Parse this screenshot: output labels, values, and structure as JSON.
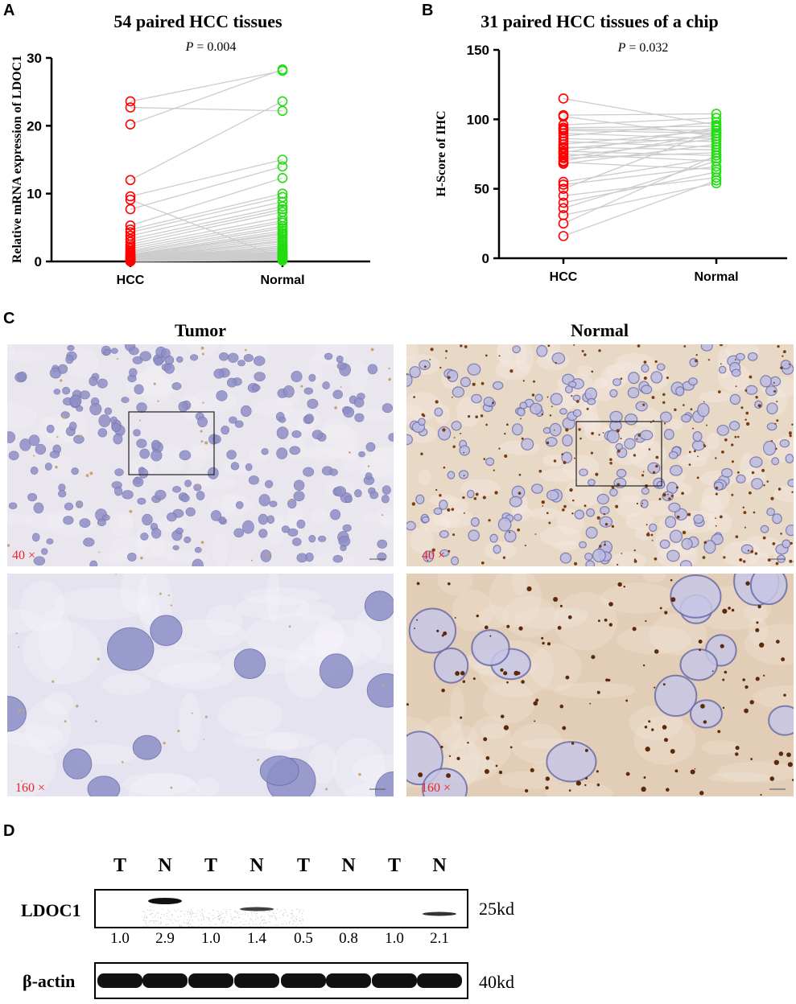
{
  "panels": {
    "a": "A",
    "b": "B",
    "c": "C",
    "d": "D"
  },
  "chart_data": [
    {
      "type": "scatter",
      "title": "54 paired HCC tissues",
      "annotation": "P = 0.004",
      "p_label": "P",
      "p_value": "= 0.004",
      "ylabel": "Relative mRNA expression of LDOC1",
      "categories": [
        "HCC",
        "Normal"
      ],
      "ylim": [
        0,
        30
      ],
      "yticks": [
        0,
        10,
        20,
        30
      ],
      "paired": true,
      "colors": {
        "HCC": "#ff0000",
        "Normal": "#22dd11",
        "lines": "#cccccc"
      },
      "hcc": [
        23.6,
        22.7,
        20.2,
        12.0,
        9.6,
        9.1,
        7.7,
        5.3,
        4.7,
        4.3,
        3.8,
        3.3,
        2.9,
        2.5,
        2.2,
        1.9,
        1.6,
        1.4,
        1.2,
        1.0,
        0.9,
        0.8,
        0.7,
        0.6,
        0.5,
        0.45,
        0.4,
        0.35,
        0.3,
        0.28,
        0.25,
        0.22,
        0.2,
        0.18,
        0.16,
        0.15,
        0.14,
        0.12,
        0.11,
        0.1,
        0.1,
        0.09,
        0.08,
        0.08,
        0.07,
        0.06,
        0.06,
        0.05,
        0.05,
        0.04,
        0.04,
        0.03,
        0.03,
        0.02
      ],
      "normal": [
        28.1,
        22.2,
        28.3,
        23.6,
        15.0,
        0.5,
        14.0,
        12.3,
        10.0,
        9.5,
        8.8,
        8.1,
        7.7,
        7.3,
        6.5,
        6.0,
        5.7,
        5.2,
        4.9,
        4.5,
        4.2,
        4.0,
        3.7,
        3.4,
        3.1,
        2.9,
        2.6,
        2.3,
        2.1,
        1.9,
        1.7,
        1.5,
        1.4,
        1.3,
        1.2,
        1.1,
        1.0,
        0.95,
        0.9,
        0.85,
        0.8,
        0.75,
        0.7,
        0.65,
        0.6,
        0.55,
        0.5,
        0.45,
        0.4,
        0.35,
        0.3,
        0.25,
        0.2,
        0.15
      ]
    },
    {
      "type": "scatter",
      "title": "31 paired HCC tissues of a chip",
      "annotation": "P = 0.032",
      "p_label": "P",
      "p_value": "= 0.032",
      "ylabel": "H-Score of IHC",
      "categories": [
        "HCC",
        "Normal"
      ],
      "ylim": [
        0,
        150
      ],
      "yticks": [
        0,
        50,
        100,
        150
      ],
      "paired": true,
      "colors": {
        "HCC": "#ff0000",
        "Normal": "#22dd11",
        "lines": "#cccccc"
      },
      "hcc": [
        115,
        103,
        102,
        96,
        94,
        93,
        92,
        90,
        88,
        86,
        84,
        82,
        80,
        79,
        77,
        76,
        75,
        73,
        72,
        70,
        69,
        68,
        55,
        53,
        50,
        45,
        40,
        36,
        31,
        25,
        16
      ],
      "normal": [
        96,
        104,
        88,
        101,
        95,
        92,
        90,
        86,
        98,
        84,
        80,
        92,
        78,
        88,
        74,
        94,
        70,
        86,
        76,
        90,
        64,
        82,
        72,
        66,
        92,
        58,
        62,
        70,
        54,
        74,
        56
      ]
    }
  ],
  "ihc": {
    "tumor_title": "Tumor",
    "normal_title": "Normal",
    "mag_40": "40 ×",
    "mag_160": "160 ×"
  },
  "western": {
    "lanes": [
      "T",
      "N",
      "T",
      "N",
      "T",
      "N",
      "T",
      "N"
    ],
    "ldoc1_label": "LDOC1",
    "actin_label": "β-actin",
    "ldoc1_size": "25kd",
    "actin_size": "40kd",
    "ratios": [
      "1.0",
      "2.9",
      "1.0",
      "1.4",
      "0.5",
      "0.8",
      "1.0",
      "2.1"
    ],
    "ldoc1_band_intensity": [
      0,
      1,
      0,
      0.8,
      0,
      0,
      0,
      0.85
    ]
  }
}
